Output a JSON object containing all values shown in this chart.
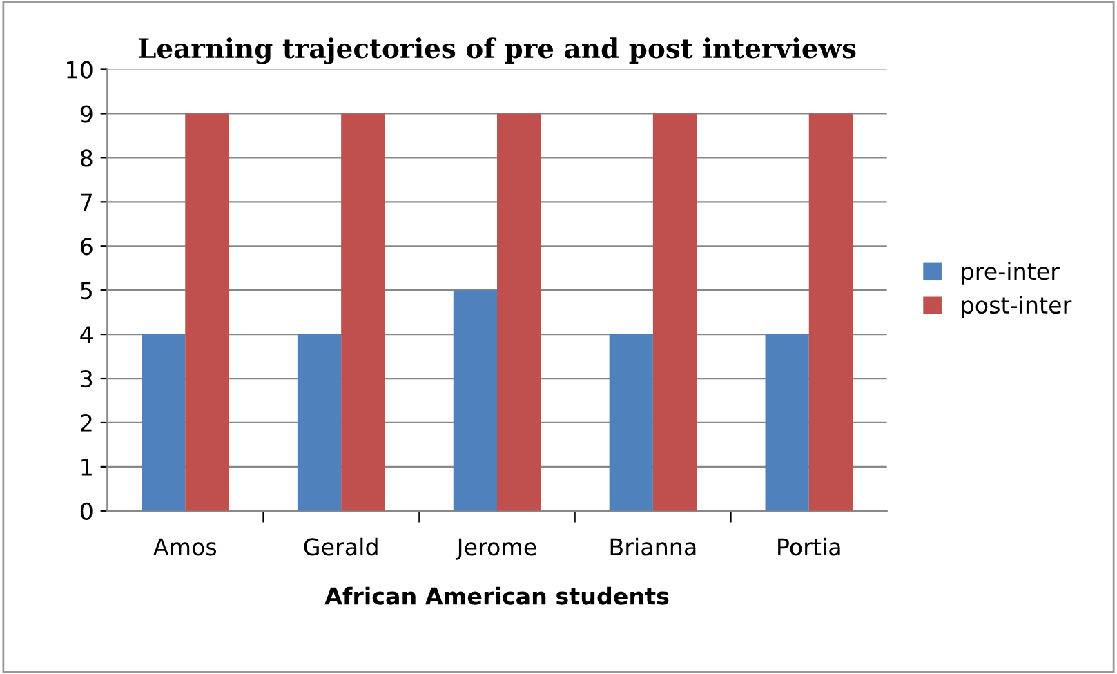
{
  "chart_data": {
    "type": "bar",
    "title": "Learning trajectories of pre and post interviews",
    "xlabel": "African American students",
    "categories": [
      "Amos",
      "Gerald",
      "Jerome",
      "Brianna",
      "Portia"
    ],
    "series": [
      {
        "name": "pre-inter",
        "color": "#4f81bd",
        "values": [
          4,
          4,
          5,
          4,
          4
        ]
      },
      {
        "name": "post-inter",
        "color": "#c0504d",
        "values": [
          9,
          9,
          9,
          9,
          9
        ]
      }
    ],
    "ylim": [
      0,
      10
    ],
    "yticks": [
      0,
      1,
      2,
      3,
      4,
      5,
      6,
      7,
      8,
      9,
      10
    ],
    "grid": "y",
    "legend": "right"
  }
}
